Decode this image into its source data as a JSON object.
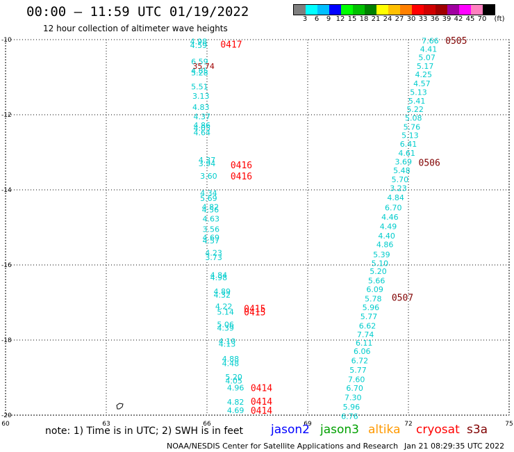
{
  "header": {
    "title": "00:00 – 11:59 UTC 01/19/2022",
    "subtitle": "12 hour collection of altimeter wave heights"
  },
  "colorbar": {
    "unit_label": "(ft)",
    "labels": [
      "3",
      "6",
      "9",
      "12",
      "15",
      "18",
      "21",
      "24",
      "27",
      "30",
      "33",
      "36",
      "39",
      "42",
      "45",
      "70"
    ],
    "colors": [
      "#7f7f7f",
      "#00ffff",
      "#00bfff",
      "#0000ff",
      "#00ff00",
      "#00c000",
      "#008000",
      "#ffff00",
      "#ffc000",
      "#ff8000",
      "#ff0000",
      "#d00000",
      "#a00000",
      "#a000a0",
      "#ff00ff",
      "#ff80c0",
      "#000000"
    ]
  },
  "chart_data": {
    "type": "scatter",
    "xlim": [
      60,
      75
    ],
    "ylim": [
      -20,
      -10
    ],
    "x_ticks": [
      "60",
      "63",
      "66",
      "69",
      "72",
      "75"
    ],
    "y_ticks": [
      "-10",
      "-12",
      "-14",
      "-16",
      "-18",
      "-20"
    ],
    "grid": true,
    "passes": [
      {
        "name": "0417",
        "color": "#ff0000",
        "label_x": 66.4,
        "label_y": -10.12
      },
      {
        "name": "0416",
        "color": "#ff0000",
        "label_x": 66.7,
        "label_y": -13.33
      },
      {
        "name": "0416",
        "color": "#ff0000",
        "label_x": 66.7,
        "label_y": -13.63
      },
      {
        "name": "0415",
        "color": "#ff0000",
        "label_x": 67.1,
        "label_y": -17.16
      },
      {
        "name": "0415",
        "color": "#ff0000",
        "label_x": 67.1,
        "label_y": -17.25
      },
      {
        "name": "0414",
        "color": "#ff0000",
        "label_x": 67.3,
        "label_y": -19.27
      },
      {
        "name": "0414",
        "color": "#ff0000",
        "label_x": 67.3,
        "label_y": -19.63
      },
      {
        "name": "0414",
        "color": "#ff0000",
        "label_x": 67.3,
        "label_y": -19.87
      },
      {
        "name": "0505",
        "color": "#800000",
        "label_x": 73.1,
        "label_y": -10.02
      },
      {
        "name": "0506",
        "color": "#800000",
        "label_x": 72.3,
        "label_y": -13.27
      },
      {
        "name": "0507",
        "color": "#800000",
        "label_x": 71.5,
        "label_y": -16.86
      }
    ],
    "series": [
      {
        "name": "cyan-west",
        "color": "#00cccc",
        "points": [
          {
            "x": 65.75,
            "y": -10.05,
            "v": "4.98"
          },
          {
            "x": 65.75,
            "y": -10.15,
            "v": "4.59"
          },
          {
            "x": 65.78,
            "y": -10.58,
            "v": "6.59"
          },
          {
            "x": 65.78,
            "y": -10.82,
            "v": "4.85"
          },
          {
            "x": 65.78,
            "y": -10.88,
            "v": "5.28"
          },
          {
            "x": 65.78,
            "y": -11.25,
            "v": "5.51"
          },
          {
            "x": 65.82,
            "y": -11.5,
            "v": "3.13"
          },
          {
            "x": 65.82,
            "y": -11.8,
            "v": "4.83"
          },
          {
            "x": 65.85,
            "y": -12.05,
            "v": "4.37"
          },
          {
            "x": 65.85,
            "y": -12.28,
            "v": "4.86"
          },
          {
            "x": 65.85,
            "y": -12.35,
            "v": "4.05"
          },
          {
            "x": 65.85,
            "y": -12.47,
            "v": "4.64"
          },
          {
            "x": 66.0,
            "y": -13.2,
            "v": "4.37"
          },
          {
            "x": 66.0,
            "y": -13.3,
            "v": "3.94"
          },
          {
            "x": 66.05,
            "y": -13.63,
            "v": "3.60"
          },
          {
            "x": 66.05,
            "y": -14.08,
            "v": "4.34"
          },
          {
            "x": 66.05,
            "y": -14.22,
            "v": "5.69"
          },
          {
            "x": 66.1,
            "y": -14.45,
            "v": "4.82"
          },
          {
            "x": 66.1,
            "y": -14.53,
            "v": "4.56"
          },
          {
            "x": 66.12,
            "y": -14.77,
            "v": "4.63"
          },
          {
            "x": 66.12,
            "y": -15.05,
            "v": "3.56"
          },
          {
            "x": 66.12,
            "y": -15.27,
            "v": "4.69"
          },
          {
            "x": 66.12,
            "y": -15.35,
            "v": "4.57"
          },
          {
            "x": 66.2,
            "y": -15.68,
            "v": "4.23"
          },
          {
            "x": 66.2,
            "y": -15.8,
            "v": "3.73"
          },
          {
            "x": 66.35,
            "y": -16.27,
            "v": "4.84"
          },
          {
            "x": 66.35,
            "y": -16.33,
            "v": "4.98"
          },
          {
            "x": 66.45,
            "y": -16.7,
            "v": "4.89"
          },
          {
            "x": 66.45,
            "y": -16.8,
            "v": "4.32"
          },
          {
            "x": 66.5,
            "y": -17.1,
            "v": "4.22"
          },
          {
            "x": 66.55,
            "y": -17.25,
            "v": "5.14"
          },
          {
            "x": 66.55,
            "y": -17.58,
            "v": "5.06"
          },
          {
            "x": 66.55,
            "y": -17.68,
            "v": "4.39"
          },
          {
            "x": 66.6,
            "y": -18.03,
            "v": "4.10"
          },
          {
            "x": 66.6,
            "y": -18.1,
            "v": "4.13"
          },
          {
            "x": 66.7,
            "y": -18.5,
            "v": "4.88"
          },
          {
            "x": 66.7,
            "y": -18.62,
            "v": "4.48"
          },
          {
            "x": 66.8,
            "y": -18.98,
            "v": "5.20"
          },
          {
            "x": 66.8,
            "y": -19.08,
            "v": "4.05"
          },
          {
            "x": 66.85,
            "y": -19.27,
            "v": "4.96"
          },
          {
            "x": 66.85,
            "y": -19.65,
            "v": "4.82"
          },
          {
            "x": 66.85,
            "y": -19.87,
            "v": "4.69"
          }
        ]
      },
      {
        "name": "dark-red-west",
        "color": "#a00000",
        "points": [
          {
            "x": 65.9,
            "y": -10.7,
            "v": "35.74"
          }
        ]
      },
      {
        "name": "cyan-east",
        "color": "#00cccc",
        "points": [
          {
            "x": 72.65,
            "y": -10.03,
            "v": "7.66"
          },
          {
            "x": 72.6,
            "y": -10.25,
            "v": "4.41"
          },
          {
            "x": 72.55,
            "y": -10.47,
            "v": "5.07"
          },
          {
            "x": 72.5,
            "y": -10.7,
            "v": "5.17"
          },
          {
            "x": 72.45,
            "y": -10.93,
            "v": "4.25"
          },
          {
            "x": 72.4,
            "y": -11.17,
            "v": "4.57"
          },
          {
            "x": 72.3,
            "y": -11.4,
            "v": "5.13"
          },
          {
            "x": 72.25,
            "y": -11.63,
            "v": "5.41"
          },
          {
            "x": 72.2,
            "y": -11.85,
            "v": "5.22"
          },
          {
            "x": 72.15,
            "y": -12.08,
            "v": "5.08"
          },
          {
            "x": 72.1,
            "y": -12.32,
            "v": "5.76"
          },
          {
            "x": 72.05,
            "y": -12.55,
            "v": "5.13"
          },
          {
            "x": 72.0,
            "y": -12.78,
            "v": "6.41"
          },
          {
            "x": 71.95,
            "y": -13.02,
            "v": "4.61"
          },
          {
            "x": 71.85,
            "y": -13.25,
            "v": "3.69"
          },
          {
            "x": 71.8,
            "y": -13.48,
            "v": "5.48"
          },
          {
            "x": 71.75,
            "y": -13.72,
            "v": "5.70"
          },
          {
            "x": 71.7,
            "y": -13.95,
            "v": "3.23"
          },
          {
            "x": 71.62,
            "y": -14.2,
            "v": "4.84"
          },
          {
            "x": 71.55,
            "y": -14.47,
            "v": "6.70"
          },
          {
            "x": 71.45,
            "y": -14.72,
            "v": "4.46"
          },
          {
            "x": 71.4,
            "y": -14.97,
            "v": "4.49"
          },
          {
            "x": 71.35,
            "y": -15.22,
            "v": "4.40"
          },
          {
            "x": 71.3,
            "y": -15.45,
            "v": "4.86"
          },
          {
            "x": 71.2,
            "y": -15.72,
            "v": "5.39"
          },
          {
            "x": 71.15,
            "y": -15.95,
            "v": "5.10"
          },
          {
            "x": 71.1,
            "y": -16.17,
            "v": "5.20"
          },
          {
            "x": 71.05,
            "y": -16.42,
            "v": "5.66"
          },
          {
            "x": 71.0,
            "y": -16.65,
            "v": "6.09"
          },
          {
            "x": 70.95,
            "y": -16.9,
            "v": "5.78"
          },
          {
            "x": 70.88,
            "y": -17.13,
            "v": "5.96"
          },
          {
            "x": 70.82,
            "y": -17.37,
            "v": "5.77"
          },
          {
            "x": 70.78,
            "y": -17.62,
            "v": "6.62"
          },
          {
            "x": 70.72,
            "y": -17.85,
            "v": "7.74"
          },
          {
            "x": 70.68,
            "y": -18.07,
            "v": "6.11"
          },
          {
            "x": 70.62,
            "y": -18.3,
            "v": "6.06"
          },
          {
            "x": 70.55,
            "y": -18.55,
            "v": "6.72"
          },
          {
            "x": 70.5,
            "y": -18.8,
            "v": "5.77"
          },
          {
            "x": 70.45,
            "y": -19.05,
            "v": "7.60"
          },
          {
            "x": 70.4,
            "y": -19.28,
            "v": "6.70"
          },
          {
            "x": 70.35,
            "y": -19.53,
            "v": "7.30"
          },
          {
            "x": 70.3,
            "y": -19.78,
            "v": "5.96"
          },
          {
            "x": 70.25,
            "y": -20.03,
            "v": "6.76"
          }
        ]
      }
    ]
  },
  "footer": {
    "note": "note: 1) Time is in UTC; 2) SWH is in feet",
    "legend": [
      {
        "label": "jason2",
        "color": "#0000ff"
      },
      {
        "label": "jason3",
        "color": "#00a000"
      },
      {
        "label": "altika",
        "color": "#ff9900"
      },
      {
        "label": "cryosat",
        "color": "#ff0000"
      },
      {
        "label": "s3a",
        "color": "#800000"
      }
    ],
    "credit": "NOAA/NESDIS Center for Satellite Applications and Research",
    "timestamp": "Jan 21 08:29:35 UTC 2022"
  }
}
